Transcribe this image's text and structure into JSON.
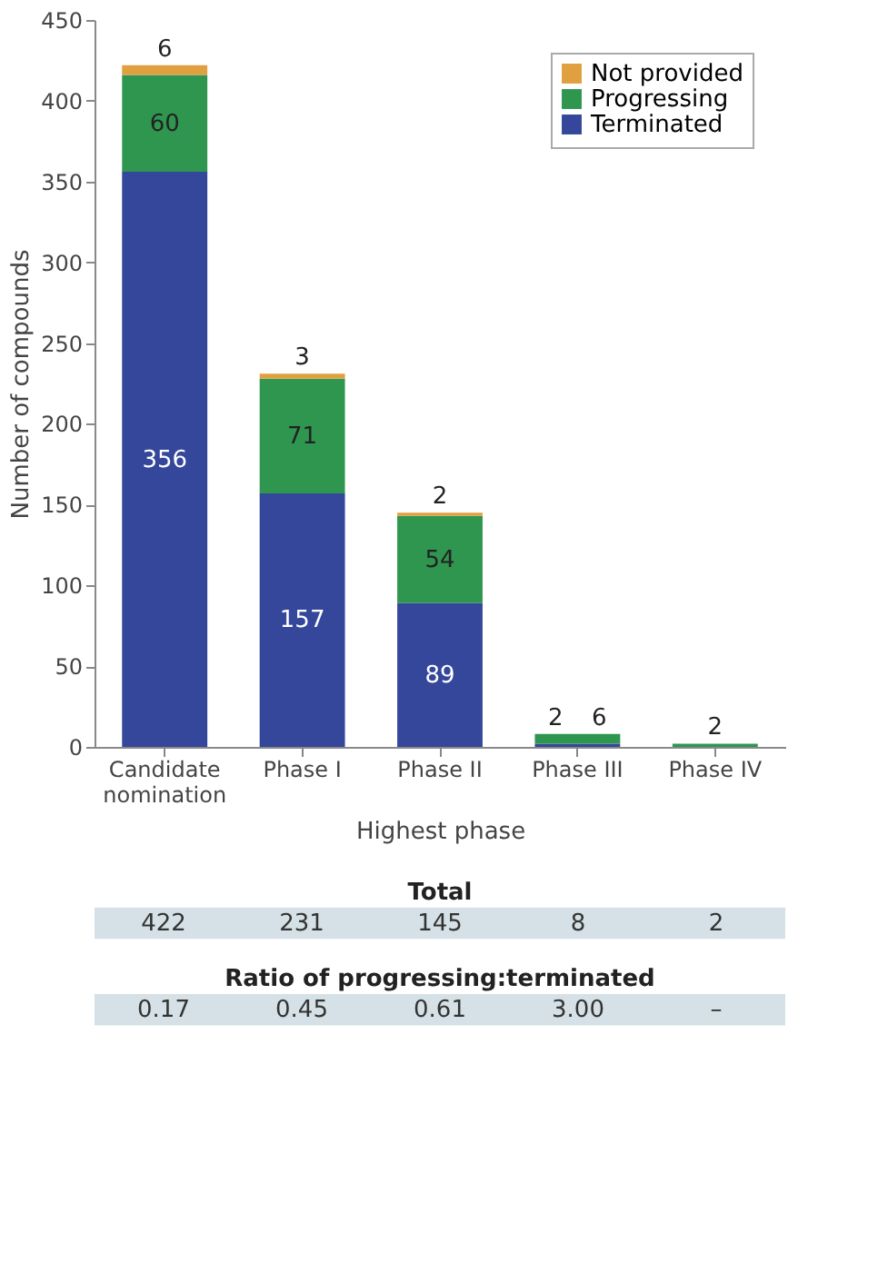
{
  "chart_data": {
    "type": "bar",
    "stacked": true,
    "xlabel": "Highest phase",
    "ylabel": "Number of compounds",
    "categories": [
      "Candidate nomination",
      "Phase I",
      "Phase II",
      "Phase III",
      "Phase IV"
    ],
    "series": [
      {
        "name": "Terminated",
        "color": "#34479a",
        "values": [
          356,
          157,
          89,
          2,
          0
        ],
        "value_labels": [
          "356",
          "157",
          "89",
          "2",
          null
        ]
      },
      {
        "name": "Progressing",
        "color": "#2f9650",
        "values": [
          60,
          71,
          54,
          6,
          2
        ],
        "value_labels": [
          "60",
          "71",
          "54",
          "6",
          "2"
        ]
      },
      {
        "name": "Not provided",
        "color": "#e0a040",
        "values": [
          6,
          3,
          2,
          0,
          0
        ],
        "value_labels": [
          "6",
          "3",
          "2",
          null,
          null
        ]
      }
    ],
    "ylim": [
      0,
      450
    ],
    "yticks": [
      0,
      50,
      100,
      150,
      200,
      250,
      300,
      350,
      400,
      450
    ],
    "grid": false,
    "legend": "top right",
    "annotations": [
      "Total",
      "422",
      "231",
      "145",
      "8",
      "2",
      "Ratio of progressing:terminated",
      "0.17",
      "0.45",
      "0.61",
      "3.00",
      "–"
    ]
  }
}
